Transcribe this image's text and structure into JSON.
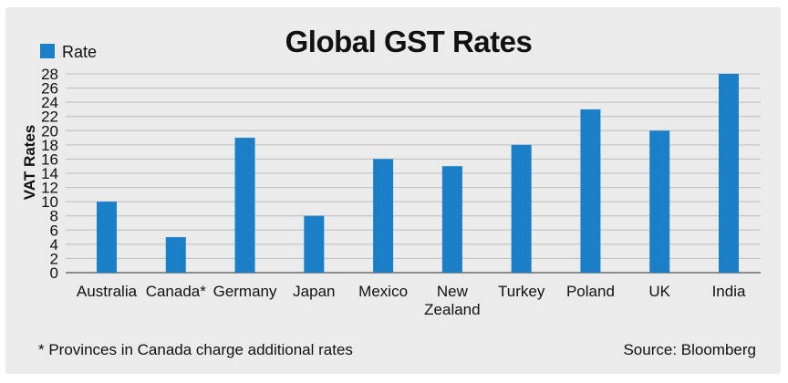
{
  "chart_data": {
    "type": "bar",
    "title": "Global GST Rates",
    "ylabel": "VAT Rates",
    "xlabel": "",
    "legend": {
      "label": "Rate",
      "placement": "top-left"
    },
    "categories": [
      "Australia",
      "Canada*",
      "Germany",
      "Japan",
      "Mexico",
      "New Zealand",
      "Turkey",
      "Poland",
      "UK",
      "India"
    ],
    "values": [
      10,
      5,
      19,
      8,
      16,
      15,
      18,
      23,
      20,
      28
    ],
    "ylim": [
      0,
      28
    ],
    "yticks": [
      0,
      2,
      4,
      6,
      8,
      10,
      12,
      14,
      16,
      18,
      20,
      22,
      24,
      26,
      28
    ],
    "grid": true,
    "bar_color": "#1a7fc7",
    "footnote": "* Provinces in Canada charge additional rates",
    "source": "Source: Bloomberg"
  }
}
